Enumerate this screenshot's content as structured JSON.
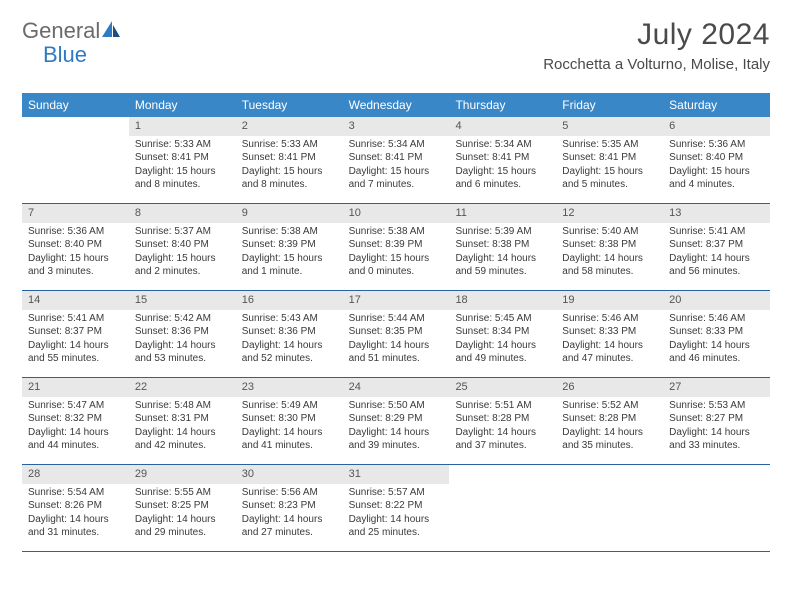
{
  "logo": {
    "text1": "General",
    "text2": "Blue"
  },
  "title": "July 2024",
  "location": "Rocchetta a Volturno, Molise, Italy",
  "colors": {
    "header_bg": "#3a87c8",
    "header_text": "#ffffff",
    "daynum_bg": "#e8e8e8",
    "row_border": "#2962a0",
    "body_text": "#3a3a3a",
    "title_text": "#4a4a4a",
    "logo_gray": "#6b6b6b",
    "logo_blue": "#2f7bc3"
  },
  "weekdays": [
    "Sunday",
    "Monday",
    "Tuesday",
    "Wednesday",
    "Thursday",
    "Friday",
    "Saturday"
  ],
  "grid": [
    [
      null,
      {
        "n": "1",
        "sr": "Sunrise: 5:33 AM",
        "ss": "Sunset: 8:41 PM",
        "d1": "Daylight: 15 hours",
        "d2": "and 8 minutes."
      },
      {
        "n": "2",
        "sr": "Sunrise: 5:33 AM",
        "ss": "Sunset: 8:41 PM",
        "d1": "Daylight: 15 hours",
        "d2": "and 8 minutes."
      },
      {
        "n": "3",
        "sr": "Sunrise: 5:34 AM",
        "ss": "Sunset: 8:41 PM",
        "d1": "Daylight: 15 hours",
        "d2": "and 7 minutes."
      },
      {
        "n": "4",
        "sr": "Sunrise: 5:34 AM",
        "ss": "Sunset: 8:41 PM",
        "d1": "Daylight: 15 hours",
        "d2": "and 6 minutes."
      },
      {
        "n": "5",
        "sr": "Sunrise: 5:35 AM",
        "ss": "Sunset: 8:41 PM",
        "d1": "Daylight: 15 hours",
        "d2": "and 5 minutes."
      },
      {
        "n": "6",
        "sr": "Sunrise: 5:36 AM",
        "ss": "Sunset: 8:40 PM",
        "d1": "Daylight: 15 hours",
        "d2": "and 4 minutes."
      }
    ],
    [
      {
        "n": "7",
        "sr": "Sunrise: 5:36 AM",
        "ss": "Sunset: 8:40 PM",
        "d1": "Daylight: 15 hours",
        "d2": "and 3 minutes."
      },
      {
        "n": "8",
        "sr": "Sunrise: 5:37 AM",
        "ss": "Sunset: 8:40 PM",
        "d1": "Daylight: 15 hours",
        "d2": "and 2 minutes."
      },
      {
        "n": "9",
        "sr": "Sunrise: 5:38 AM",
        "ss": "Sunset: 8:39 PM",
        "d1": "Daylight: 15 hours",
        "d2": "and 1 minute."
      },
      {
        "n": "10",
        "sr": "Sunrise: 5:38 AM",
        "ss": "Sunset: 8:39 PM",
        "d1": "Daylight: 15 hours",
        "d2": "and 0 minutes."
      },
      {
        "n": "11",
        "sr": "Sunrise: 5:39 AM",
        "ss": "Sunset: 8:38 PM",
        "d1": "Daylight: 14 hours",
        "d2": "and 59 minutes."
      },
      {
        "n": "12",
        "sr": "Sunrise: 5:40 AM",
        "ss": "Sunset: 8:38 PM",
        "d1": "Daylight: 14 hours",
        "d2": "and 58 minutes."
      },
      {
        "n": "13",
        "sr": "Sunrise: 5:41 AM",
        "ss": "Sunset: 8:37 PM",
        "d1": "Daylight: 14 hours",
        "d2": "and 56 minutes."
      }
    ],
    [
      {
        "n": "14",
        "sr": "Sunrise: 5:41 AM",
        "ss": "Sunset: 8:37 PM",
        "d1": "Daylight: 14 hours",
        "d2": "and 55 minutes."
      },
      {
        "n": "15",
        "sr": "Sunrise: 5:42 AM",
        "ss": "Sunset: 8:36 PM",
        "d1": "Daylight: 14 hours",
        "d2": "and 53 minutes."
      },
      {
        "n": "16",
        "sr": "Sunrise: 5:43 AM",
        "ss": "Sunset: 8:36 PM",
        "d1": "Daylight: 14 hours",
        "d2": "and 52 minutes."
      },
      {
        "n": "17",
        "sr": "Sunrise: 5:44 AM",
        "ss": "Sunset: 8:35 PM",
        "d1": "Daylight: 14 hours",
        "d2": "and 51 minutes."
      },
      {
        "n": "18",
        "sr": "Sunrise: 5:45 AM",
        "ss": "Sunset: 8:34 PM",
        "d1": "Daylight: 14 hours",
        "d2": "and 49 minutes."
      },
      {
        "n": "19",
        "sr": "Sunrise: 5:46 AM",
        "ss": "Sunset: 8:33 PM",
        "d1": "Daylight: 14 hours",
        "d2": "and 47 minutes."
      },
      {
        "n": "20",
        "sr": "Sunrise: 5:46 AM",
        "ss": "Sunset: 8:33 PM",
        "d1": "Daylight: 14 hours",
        "d2": "and 46 minutes."
      }
    ],
    [
      {
        "n": "21",
        "sr": "Sunrise: 5:47 AM",
        "ss": "Sunset: 8:32 PM",
        "d1": "Daylight: 14 hours",
        "d2": "and 44 minutes."
      },
      {
        "n": "22",
        "sr": "Sunrise: 5:48 AM",
        "ss": "Sunset: 8:31 PM",
        "d1": "Daylight: 14 hours",
        "d2": "and 42 minutes."
      },
      {
        "n": "23",
        "sr": "Sunrise: 5:49 AM",
        "ss": "Sunset: 8:30 PM",
        "d1": "Daylight: 14 hours",
        "d2": "and 41 minutes."
      },
      {
        "n": "24",
        "sr": "Sunrise: 5:50 AM",
        "ss": "Sunset: 8:29 PM",
        "d1": "Daylight: 14 hours",
        "d2": "and 39 minutes."
      },
      {
        "n": "25",
        "sr": "Sunrise: 5:51 AM",
        "ss": "Sunset: 8:28 PM",
        "d1": "Daylight: 14 hours",
        "d2": "and 37 minutes."
      },
      {
        "n": "26",
        "sr": "Sunrise: 5:52 AM",
        "ss": "Sunset: 8:28 PM",
        "d1": "Daylight: 14 hours",
        "d2": "and 35 minutes."
      },
      {
        "n": "27",
        "sr": "Sunrise: 5:53 AM",
        "ss": "Sunset: 8:27 PM",
        "d1": "Daylight: 14 hours",
        "d2": "and 33 minutes."
      }
    ],
    [
      {
        "n": "28",
        "sr": "Sunrise: 5:54 AM",
        "ss": "Sunset: 8:26 PM",
        "d1": "Daylight: 14 hours",
        "d2": "and 31 minutes."
      },
      {
        "n": "29",
        "sr": "Sunrise: 5:55 AM",
        "ss": "Sunset: 8:25 PM",
        "d1": "Daylight: 14 hours",
        "d2": "and 29 minutes."
      },
      {
        "n": "30",
        "sr": "Sunrise: 5:56 AM",
        "ss": "Sunset: 8:23 PM",
        "d1": "Daylight: 14 hours",
        "d2": "and 27 minutes."
      },
      {
        "n": "31",
        "sr": "Sunrise: 5:57 AM",
        "ss": "Sunset: 8:22 PM",
        "d1": "Daylight: 14 hours",
        "d2": "and 25 minutes."
      },
      null,
      null,
      null
    ]
  ]
}
